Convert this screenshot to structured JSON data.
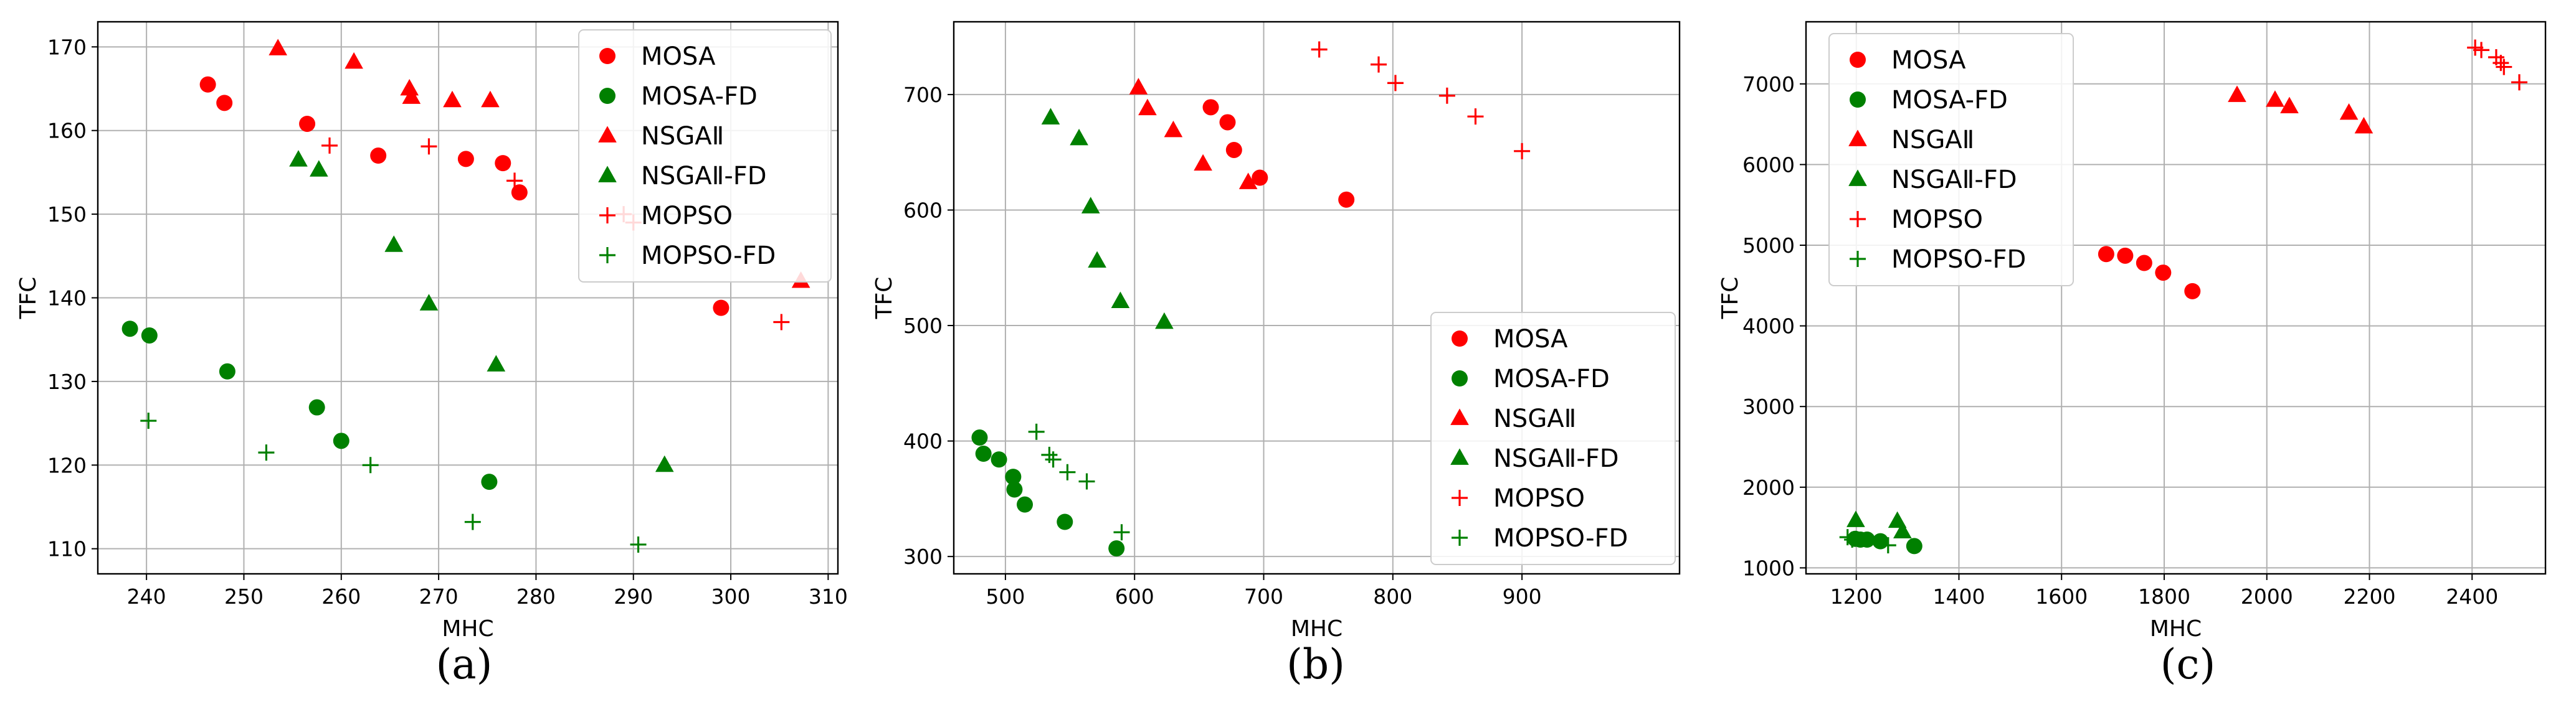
{
  "colors": {
    "red": "#ff0000",
    "green": "#008000",
    "grid": "#b0b0b0",
    "axis": "#000000"
  },
  "chart_data": [
    {
      "type": "scatter",
      "caption": "(a)",
      "xlabel": "MHC",
      "ylabel": "TFC",
      "xlim": [
        235,
        311
      ],
      "ylim": [
        107,
        173
      ],
      "xticks": [
        240,
        250,
        260,
        270,
        280,
        290,
        300,
        310
      ],
      "yticks": [
        110,
        120,
        130,
        140,
        150,
        160,
        170
      ],
      "legend_loc": "top-right",
      "series": [
        {
          "name": "MOSA",
          "marker": "circle",
          "color": "#ff0000",
          "x": [
            246.3,
            248.0,
            256.5,
            263.8,
            272.8,
            276.6,
            278.3,
            299.0
          ],
          "y": [
            165.5,
            163.3,
            160.8,
            157.0,
            156.6,
            156.1,
            152.6,
            138.8
          ]
        },
        {
          "name": "MOSA-FD",
          "marker": "circle",
          "color": "#008000",
          "x": [
            238.3,
            240.3,
            248.3,
            257.5,
            260.0,
            275.2
          ],
          "y": [
            136.3,
            135.5,
            131.2,
            126.9,
            122.9,
            118.0
          ]
        },
        {
          "name": "NSGAⅡ",
          "marker": "triangle",
          "color": "#ff0000",
          "x": [
            253.5,
            261.3,
            267.0,
            267.2,
            271.4,
            275.3,
            307.2
          ],
          "y": [
            169.8,
            168.2,
            165.0,
            164.0,
            163.6,
            163.6,
            142.0
          ]
        },
        {
          "name": "NSGAⅡ-FD",
          "marker": "triangle",
          "color": "#008000",
          "x": [
            255.6,
            257.7,
            265.4,
            269.0,
            275.9,
            293.2
          ],
          "y": [
            156.5,
            155.3,
            146.3,
            139.3,
            132.0,
            120.0
          ]
        },
        {
          "name": "MOPSO",
          "marker": "plus",
          "color": "#ff0000",
          "x": [
            258.8,
            269.0,
            277.8,
            289.0,
            290.0,
            305.2
          ],
          "y": [
            158.2,
            158.1,
            154.0,
            150.0,
            149.0,
            137.1
          ]
        },
        {
          "name": "MOPSO-FD",
          "marker": "plus",
          "color": "#008000",
          "x": [
            240.2,
            252.3,
            263.0,
            273.5,
            290.5
          ],
          "y": [
            125.3,
            121.5,
            120.0,
            113.2,
            110.5
          ]
        }
      ]
    },
    {
      "type": "scatter",
      "caption": "(b)",
      "xlabel": "MHC",
      "ylabel": "TFC",
      "xlim": [
        460,
        1022
      ],
      "ylim": [
        285,
        763
      ],
      "xticks": [
        500,
        600,
        700,
        800,
        900
      ],
      "yticks": [
        300,
        400,
        500,
        600,
        700
      ],
      "legend_loc": "bottom-right",
      "series": [
        {
          "name": "MOSA",
          "marker": "circle",
          "color": "#ff0000",
          "x": [
            659,
            672,
            677,
            697,
            764
          ],
          "y": [
            689,
            676,
            652,
            628,
            609
          ]
        },
        {
          "name": "MOSA-FD",
          "marker": "circle",
          "color": "#008000",
          "x": [
            480,
            483,
            495,
            506,
            507,
            515,
            546,
            586
          ],
          "y": [
            403,
            389,
            384,
            369,
            358,
            345,
            330,
            307
          ]
        },
        {
          "name": "NSGAⅡ",
          "marker": "triangle",
          "color": "#ff0000",
          "x": [
            603,
            610,
            630,
            653,
            688
          ],
          "y": [
            706,
            688,
            669,
            640,
            624
          ]
        },
        {
          "name": "NSGAⅡ-FD",
          "marker": "triangle",
          "color": "#008000",
          "x": [
            535,
            557,
            566,
            571,
            589,
            623
          ],
          "y": [
            680,
            662,
            603,
            556,
            521,
            503
          ]
        },
        {
          "name": "MOPSO",
          "marker": "plus",
          "color": "#ff0000",
          "x": [
            743,
            789,
            802,
            842,
            864,
            900
          ],
          "y": [
            739,
            726,
            710,
            699,
            681,
            651
          ]
        },
        {
          "name": "MOPSO-FD",
          "marker": "plus",
          "color": "#008000",
          "x": [
            524,
            534,
            537,
            548,
            563,
            590
          ],
          "y": [
            408,
            388,
            384,
            373,
            365,
            321
          ]
        }
      ]
    },
    {
      "type": "scatter",
      "caption": "(c)",
      "xlabel": "MHC",
      "ylabel": "TFC",
      "xlim": [
        1102,
        2543
      ],
      "ylim": [
        926,
        7770
      ],
      "xticks": [
        1200,
        1400,
        1600,
        1800,
        2000,
        2200,
        2400
      ],
      "yticks": [
        1000,
        2000,
        3000,
        4000,
        5000,
        6000,
        7000
      ],
      "legend_loc": "top-left",
      "series": [
        {
          "name": "MOSA",
          "marker": "circle",
          "color": "#ff0000",
          "x": [
            1687,
            1724,
            1761,
            1798,
            1855
          ],
          "y": [
            4890,
            4870,
            4780,
            4660,
            4430
          ]
        },
        {
          "name": "MOSA-FD",
          "marker": "circle",
          "color": "#008000",
          "x": [
            1198,
            1208,
            1221,
            1247,
            1313
          ],
          "y": [
            1360,
            1350,
            1350,
            1330,
            1270
          ]
        },
        {
          "name": "NSGAⅡ",
          "marker": "triangle",
          "color": "#ff0000",
          "x": [
            1942,
            2016,
            2044,
            2160,
            2189
          ],
          "y": [
            6860,
            6800,
            6720,
            6640,
            6470
          ]
        },
        {
          "name": "NSGAⅡ-FD",
          "marker": "triangle",
          "color": "#008000",
          "x": [
            1199,
            1280,
            1290
          ],
          "y": [
            1590,
            1580,
            1450
          ]
        },
        {
          "name": "MOPSO",
          "marker": "plus",
          "color": "#ff0000",
          "x": [
            2406,
            2418,
            2447,
            2456,
            2462,
            2492
          ],
          "y": [
            7450,
            7420,
            7330,
            7260,
            7210,
            7020
          ]
        },
        {
          "name": "MOPSO-FD",
          "marker": "plus",
          "color": "#008000",
          "x": [
            1183,
            1192,
            1262
          ],
          "y": [
            1380,
            1350,
            1280
          ]
        }
      ]
    }
  ]
}
